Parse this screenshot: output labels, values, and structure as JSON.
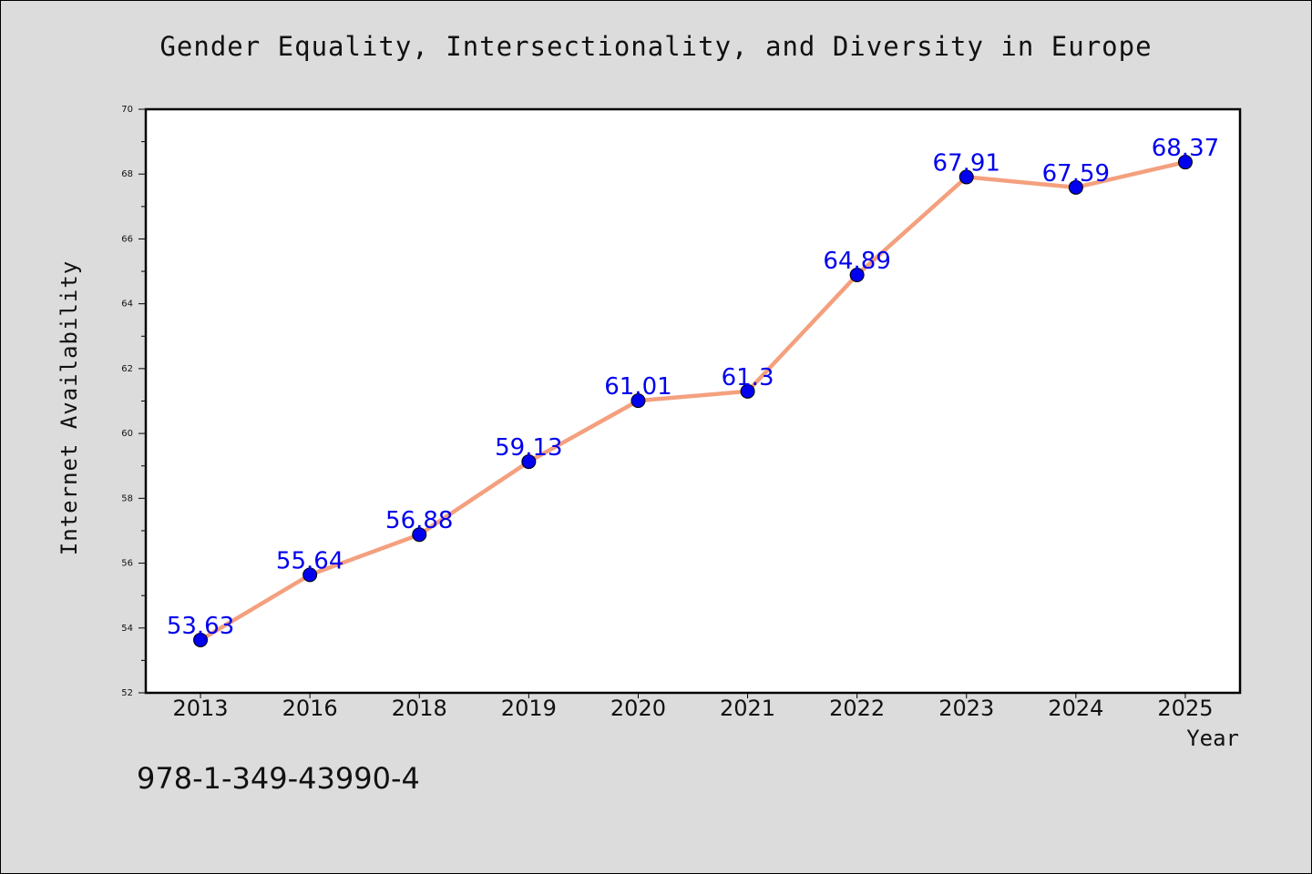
{
  "chart_data": {
    "type": "line",
    "title": "Gender Equality, Intersectionality, and Diversity in Europe",
    "xlabel": "Year",
    "ylabel": "Internet Availability",
    "categories": [
      "2013",
      "2016",
      "2018",
      "2019",
      "2020",
      "2021",
      "2022",
      "2023",
      "2024",
      "2025"
    ],
    "series": [
      {
        "values": [
          53.63,
          55.64,
          56.88,
          59.13,
          61.01,
          61.3,
          64.89,
          67.91,
          67.59,
          68.37
        ],
        "line_color": "#f4a07e",
        "marker_color": "#0000ee"
      }
    ],
    "data_labels": [
      "53.63",
      "55.64",
      "56.88",
      "59.13",
      "61.01",
      "61.3",
      "64.89",
      "67.91",
      "67.59",
      "68.37"
    ],
    "ylim": [
      52,
      70
    ],
    "yticks": [
      "52",
      "54",
      "56",
      "58",
      "60",
      "62",
      "64",
      "66",
      "68",
      "70"
    ],
    "grid": false,
    "legend": "none"
  },
  "footer": {
    "isbn": "978-1-349-43990-4"
  }
}
